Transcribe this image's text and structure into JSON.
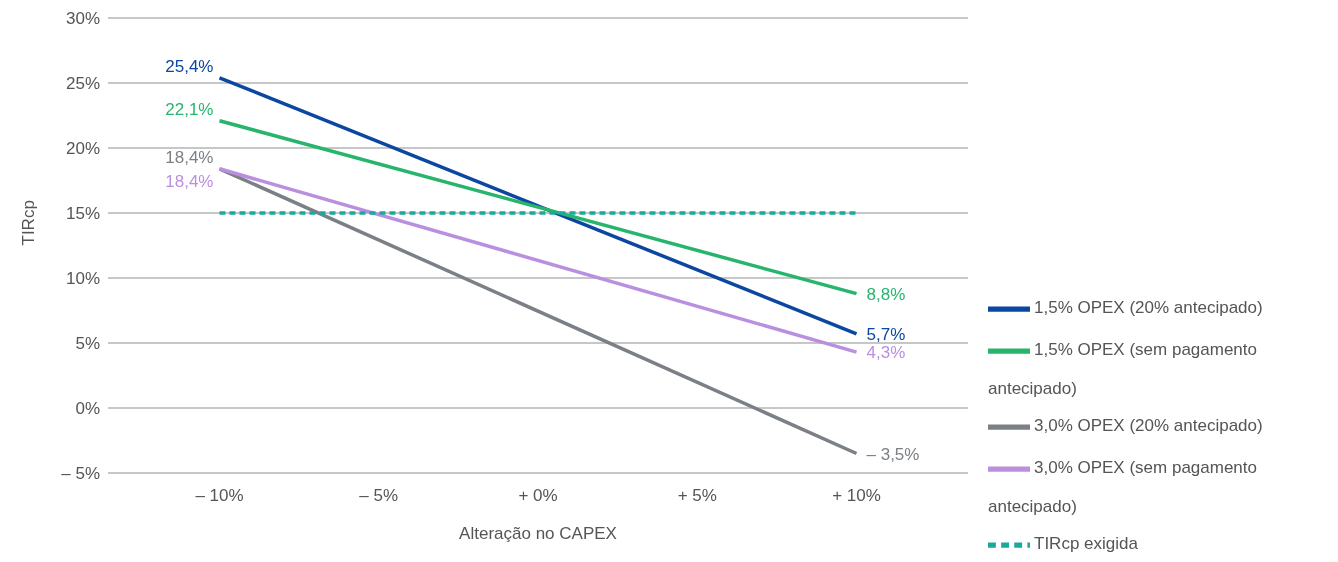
{
  "chart_data": {
    "type": "line",
    "xlabel": "Alteração no CAPEX",
    "ylabel": "TIRcp",
    "x": [
      -10,
      10
    ],
    "xlim": [
      -13.5,
      13.5
    ],
    "xticks": [
      {
        "value": -10,
        "label": "– 10%"
      },
      {
        "value": -5,
        "label": "– 5%"
      },
      {
        "value": 0,
        "label": "+ 0%"
      },
      {
        "value": 5,
        "label": "+ 5%"
      },
      {
        "value": 10,
        "label": "+ 10%"
      }
    ],
    "ylim": [
      -5,
      30
    ],
    "yticks": [
      {
        "value": -5,
        "label": "– 5%"
      },
      {
        "value": 0,
        "label": "0%"
      },
      {
        "value": 5,
        "label": "5%"
      },
      {
        "value": 10,
        "label": "10%"
      },
      {
        "value": 15,
        "label": "15%"
      },
      {
        "value": 20,
        "label": "20%"
      },
      {
        "value": 25,
        "label": "25%"
      },
      {
        "value": 30,
        "label": "30%"
      }
    ],
    "grid": "y",
    "legend": "right",
    "marker": "none",
    "series": [
      {
        "name": "1,5% OPEX (20% antecipado)",
        "color": "#0b47a1",
        "values": [
          25.4,
          5.7
        ],
        "value_labels": [
          "25,4%",
          "5,7%"
        ]
      },
      {
        "name": "1,5% OPEX (sem pagamento antecipado)",
        "color": "#27b46c",
        "values": [
          22.1,
          8.8
        ],
        "value_labels": [
          "22,1%",
          "8,8%"
        ]
      },
      {
        "name": "3,0% OPEX (20% antecipado)",
        "color": "#7b8087",
        "values": [
          18.4,
          -3.5
        ],
        "value_labels": [
          "18,4%",
          "– 3,5%"
        ]
      },
      {
        "name": "3,0% OPEX (sem pagamento antecipado)",
        "color": "#bb8fe0",
        "values": [
          18.4,
          4.3
        ],
        "value_labels": [
          "18,4%",
          "4,3%"
        ]
      },
      {
        "name": "TIRcp exigida",
        "color": "#1aa99a",
        "values": [
          15,
          15
        ],
        "line_style": "dashed"
      }
    ]
  }
}
